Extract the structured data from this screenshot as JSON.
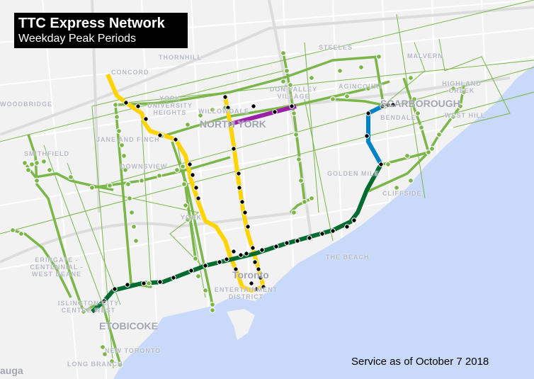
{
  "header": {
    "title": "TTC Express Network",
    "subtitle": "Weekday Peak Periods"
  },
  "footer": {
    "service_note": "Service as of October 7 2018"
  },
  "colors": {
    "express_route": "#7ab648",
    "line1": "#ffd400",
    "line2": "#006b2f",
    "line3": "#0082c9",
    "line4": "#9b1fa6",
    "water": "#c8d9f9",
    "land": "#f2f2f2"
  },
  "places": [
    {
      "name": "THORNHILL",
      "size": "small"
    },
    {
      "name": "CONCORD",
      "size": "small"
    },
    {
      "name": "WOODBRIDGE",
      "size": "small"
    },
    {
      "name": "STEELES",
      "size": "small"
    },
    {
      "name": "MALVERN",
      "size": "small"
    },
    {
      "name": "YORK UNIVERSITY HEIGHTS",
      "size": "small"
    },
    {
      "name": "WILLOWDALE",
      "size": "small"
    },
    {
      "name": "NORTH YORK",
      "size": "big"
    },
    {
      "name": "DON VALLEY VILLAGE",
      "size": "small"
    },
    {
      "name": "AGINCOURT",
      "size": "small"
    },
    {
      "name": "SCARBOROUGH",
      "size": "big"
    },
    {
      "name": "HIGHLAND CREEK",
      "size": "small"
    },
    {
      "name": "BENDALE",
      "size": "small"
    },
    {
      "name": "WEST HILL",
      "size": "small"
    },
    {
      "name": "JANE AND FINCH",
      "size": "small"
    },
    {
      "name": "SMITHFIELD",
      "size": "small"
    },
    {
      "name": "DOWNSVIEW",
      "size": "small"
    },
    {
      "name": "GOLDEN MILE",
      "size": "small"
    },
    {
      "name": "CLIFFSIDE",
      "size": "small"
    },
    {
      "name": "YORK",
      "size": "small"
    },
    {
      "name": "ERINGATE - CENTENNIAL - WEST DEANE",
      "size": "small"
    },
    {
      "name": "THE BEACH",
      "size": "small"
    },
    {
      "name": "Toronto",
      "size": "big"
    },
    {
      "name": "ENTERTAINMENT DISTRICT",
      "size": "small"
    },
    {
      "name": "ISLINGTON-CITY CENTRE WEST",
      "size": "small"
    },
    {
      "name": "ETOBICOKE",
      "size": "big"
    },
    {
      "name": "NEW TORONTO",
      "size": "small"
    },
    {
      "name": "LONG BRANCH",
      "size": "small"
    },
    {
      "name": "auga",
      "size": "big"
    }
  ]
}
